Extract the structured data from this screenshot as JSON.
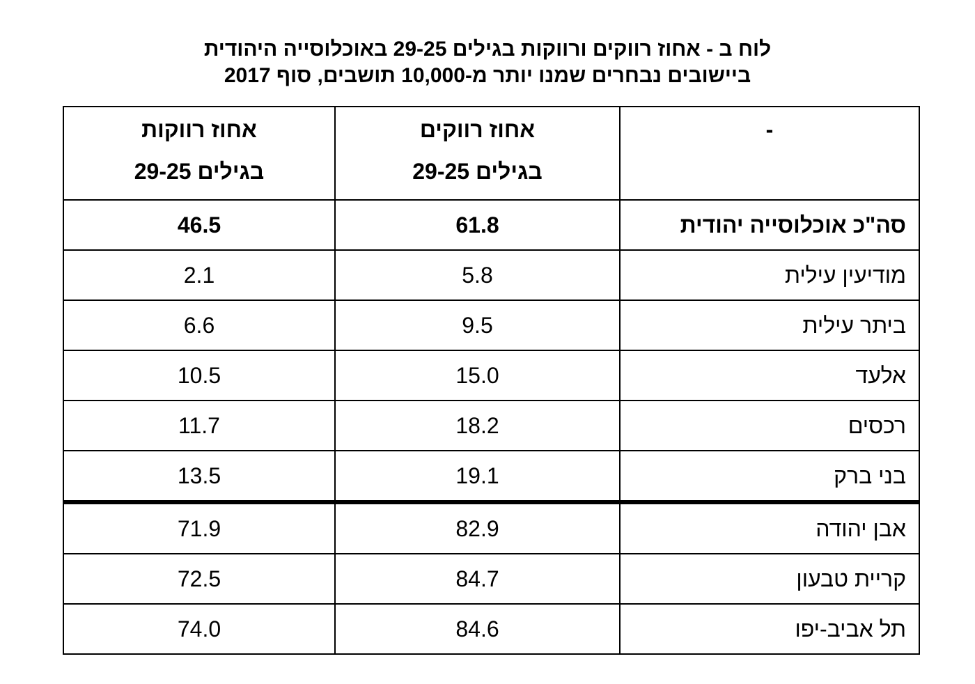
{
  "title": [
    "לוח ב - אחוז רווקים ורווקות בגילים 29-25 באוכלוסייה היהודית",
    "ביישובים נבחרים שמנו יותר מ-10,000 תושבים, סוף 2017"
  ],
  "table": {
    "header": [
      [
        "-"
      ],
      [
        "אחוז רווקים",
        "בגילים 29-25"
      ],
      [
        "אחוז רווקות",
        "בגילים 29-25"
      ]
    ],
    "rows": [
      [
        "סה\"כ אוכלוסייה יהודית",
        "61.8",
        "46.5"
      ],
      [
        "מודיעין עילית",
        "5.8",
        "2.1"
      ],
      [
        "ביתר עילית",
        "9.5",
        "6.6"
      ],
      [
        "אלעד",
        "15.0",
        "10.5"
      ],
      [
        "רכסים",
        "18.2",
        "11.7"
      ],
      [
        "בני ברק",
        "19.1",
        "13.5"
      ],
      [
        "אבן יהודה",
        "82.9",
        "71.9"
      ],
      [
        "קריית טבעון",
        "84.7",
        "72.5"
      ],
      [
        "תל אביב-יפו",
        "84.6",
        "74.0"
      ]
    ]
  }
}
